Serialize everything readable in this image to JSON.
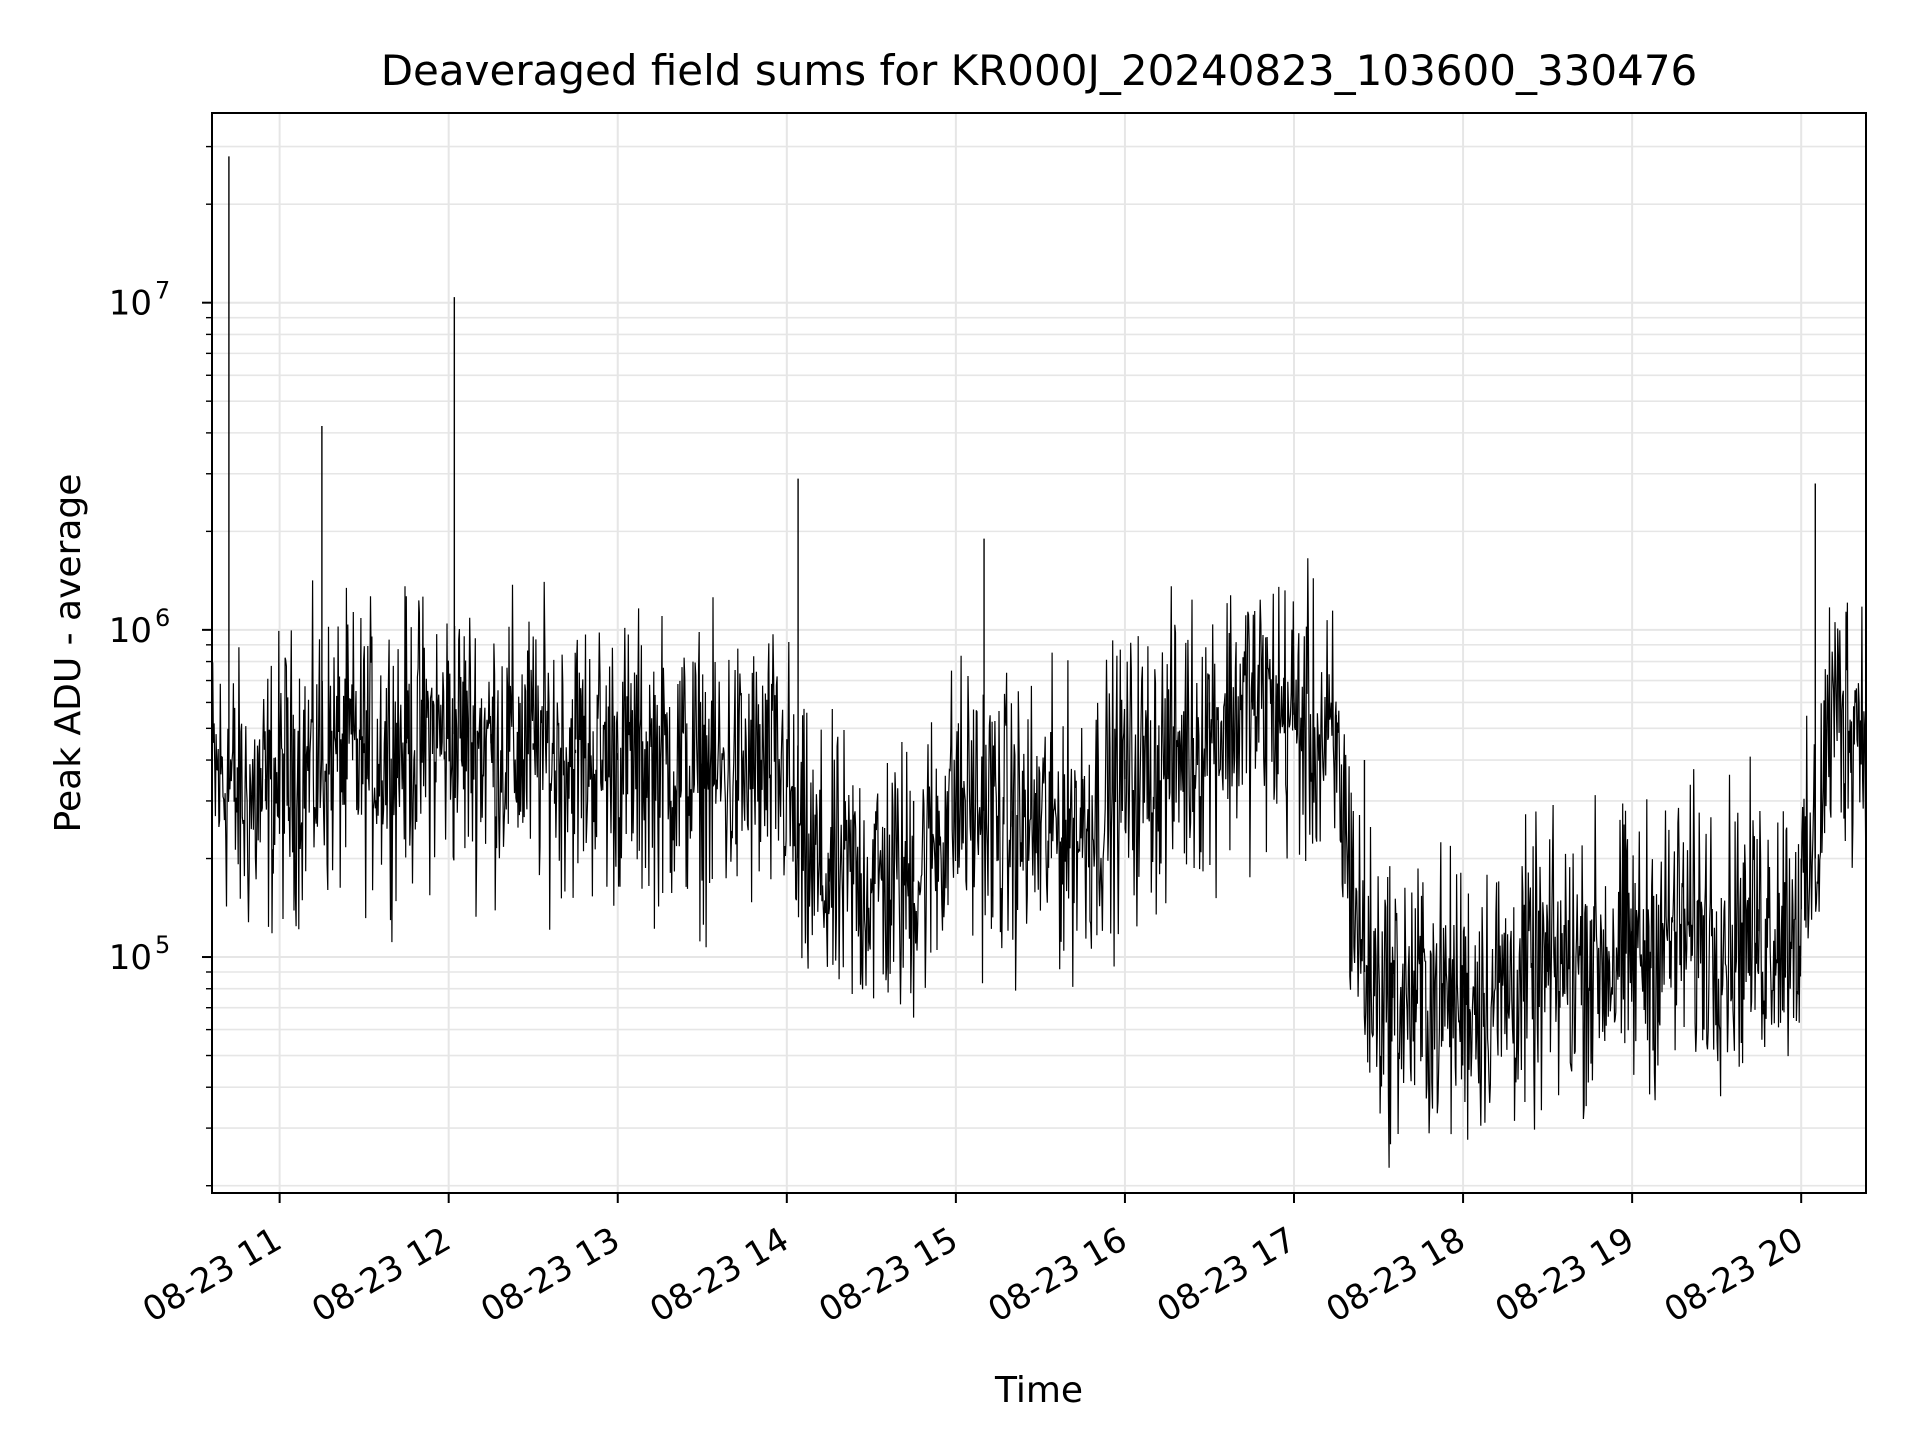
{
  "chart_data": {
    "type": "line",
    "title": "Deaveraged field sums for KR000J_20240823_103600_330476",
    "xlabel": "Time",
    "ylabel": "Peak ADU - average",
    "y_scale": "log",
    "ylim": [
      19000,
      38000000
    ],
    "xlim": [
      "2024-08-23 10:36",
      "2024-08-23 20:23"
    ],
    "grid": true,
    "line_color": "#000000",
    "grid_color": "#e6e6e6",
    "x_tick_labels": [
      "08-23 11",
      "08-23 12",
      "08-23 13",
      "08-23 14",
      "08-23 15",
      "08-23 16",
      "08-23 17",
      "08-23 18",
      "08-23 19",
      "08-23 20"
    ],
    "y_tick_labels": [
      {
        "base": "10",
        "exp": "5",
        "value": 100000
      },
      {
        "base": "10",
        "exp": "6",
        "value": 1000000
      },
      {
        "base": "10",
        "exp": "7",
        "value": 10000000
      }
    ],
    "series": [
      {
        "x": [
          "2024-08-23 10:36",
          "2024-08-23 10:39",
          "2024-08-23 10:42",
          "2024-08-23 10:45",
          "2024-08-23 10:50",
          "2024-08-23 10:55",
          "2024-08-23 11:00",
          "2024-08-23 11:10",
          "2024-08-23 11:15",
          "2024-08-23 11:20",
          "2024-08-23 11:30",
          "2024-08-23 11:45",
          "2024-08-23 12:00",
          "2024-08-23 12:02",
          "2024-08-23 12:15",
          "2024-08-23 12:30",
          "2024-08-23 12:45",
          "2024-08-23 13:00",
          "2024-08-23 13:15",
          "2024-08-23 13:30",
          "2024-08-23 13:45",
          "2024-08-23 14:00",
          "2024-08-23 14:04",
          "2024-08-23 14:15",
          "2024-08-23 14:30",
          "2024-08-23 14:45",
          "2024-08-23 15:00",
          "2024-08-23 15:10",
          "2024-08-23 15:20",
          "2024-08-23 15:30",
          "2024-08-23 15:45",
          "2024-08-23 16:00",
          "2024-08-23 16:15",
          "2024-08-23 16:30",
          "2024-08-23 16:45",
          "2024-08-23 17:00",
          "2024-08-23 17:15",
          "2024-08-23 17:25",
          "2024-08-23 17:35",
          "2024-08-23 17:45",
          "2024-08-23 18:00",
          "2024-08-23 18:15",
          "2024-08-23 18:30",
          "2024-08-23 18:45",
          "2024-08-23 19:00",
          "2024-08-23 19:15",
          "2024-08-23 19:30",
          "2024-08-23 19:45",
          "2024-08-23 20:00",
          "2024-08-23 20:05",
          "2024-08-23 20:10",
          "2024-08-23 20:20"
        ],
        "y": [
          400000,
          350000,
          28000000,
          380000,
          300000,
          350000,
          380000,
          400000,
          4200000,
          420000,
          450000,
          480000,
          500000,
          10400000,
          480000,
          450000,
          430000,
          420000,
          400000,
          390000,
          360000,
          400000,
          2900000,
          200000,
          170000,
          300000,
          300000,
          1900000,
          280000,
          250000,
          350000,
          400000,
          500000,
          600000,
          650000,
          600000,
          550000,
          400000,
          90000,
          75000,
          80000,
          90000,
          110000,
          100000,
          120000,
          130000,
          120000,
          140000,
          200000,
          2800000,
          600000,
          550000
        ]
      }
    ]
  }
}
